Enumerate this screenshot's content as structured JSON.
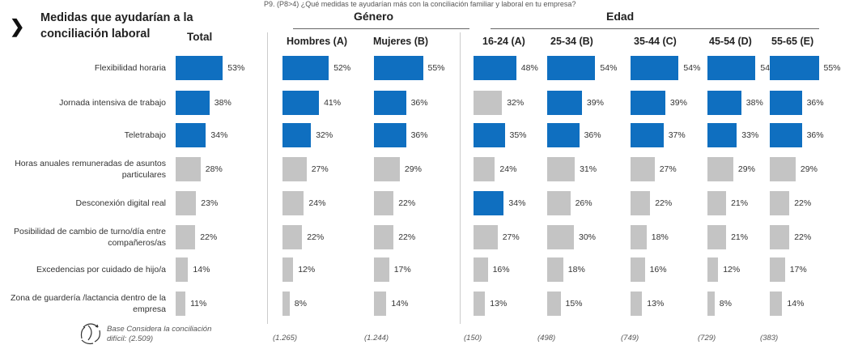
{
  "question": "P9. (P8>4) ¿Qué medidas te ayudarían más con la conciliación familiar y laboral en tu empresa?",
  "title": "Medidas que ayudarían a la conciliación laboral",
  "colors": {
    "highlight": "#0f6fc0",
    "normal": "#c4c4c4"
  },
  "groups": {
    "genero": "Género",
    "edad": "Edad"
  },
  "base_label": "Base Considera la conciliación difícil:",
  "chart_data": {
    "type": "bar",
    "orientation": "horizontal",
    "title": "Medidas que ayudarían a la conciliación laboral",
    "categories": [
      "Flexibilidad horaria",
      "Jornada intensiva de trabajo",
      "Teletrabajo",
      "Horas anuales remuneradas de asuntos particulares",
      "Desconexión digital real",
      "Posibilidad de cambio de turno/día entre compañeros/as",
      "Excedencias por cuidado de hijo/a",
      "Zona de guardería /lactancia dentro de la empresa"
    ],
    "series": [
      {
        "name": "Total",
        "base": "(2.509)",
        "values": [
          53,
          38,
          34,
          28,
          23,
          22,
          14,
          11
        ],
        "highlight": [
          1,
          1,
          1,
          0,
          0,
          0,
          0,
          0
        ]
      },
      {
        "name": "Hombres (A)",
        "base": "(1.265)",
        "values": [
          52,
          41,
          32,
          27,
          24,
          22,
          12,
          8
        ],
        "highlight": [
          1,
          1,
          1,
          0,
          0,
          0,
          0,
          0
        ]
      },
      {
        "name": "Mujeres (B)",
        "base": "(1.244)",
        "values": [
          55,
          36,
          36,
          29,
          22,
          22,
          17,
          14
        ],
        "highlight": [
          1,
          1,
          1,
          0,
          0,
          0,
          0,
          0
        ]
      },
      {
        "name": "16-24 (A)",
        "base": "(150)",
        "values": [
          48,
          32,
          35,
          24,
          34,
          27,
          16,
          13
        ],
        "highlight": [
          1,
          0,
          1,
          0,
          1,
          0,
          0,
          0
        ]
      },
      {
        "name": "25-34 (B)",
        "base": "(498)",
        "values": [
          54,
          39,
          36,
          31,
          26,
          30,
          18,
          15
        ],
        "highlight": [
          1,
          1,
          1,
          0,
          0,
          0,
          0,
          0
        ]
      },
      {
        "name": "35-44 (C)",
        "base": "(749)",
        "values": [
          54,
          39,
          37,
          27,
          22,
          18,
          16,
          13
        ],
        "highlight": [
          1,
          1,
          1,
          0,
          0,
          0,
          0,
          0
        ]
      },
      {
        "name": "45-54 (D)",
        "base": "(729)",
        "values": [
          54,
          38,
          33,
          29,
          21,
          21,
          12,
          8
        ],
        "highlight": [
          1,
          1,
          1,
          0,
          0,
          0,
          0,
          0
        ]
      },
      {
        "name": "55-65 (E)",
        "base": "(383)",
        "values": [
          55,
          36,
          36,
          29,
          22,
          22,
          17,
          14
        ],
        "highlight": [
          1,
          1,
          1,
          0,
          0,
          0,
          0,
          0
        ]
      }
    ],
    "unit": "%"
  }
}
